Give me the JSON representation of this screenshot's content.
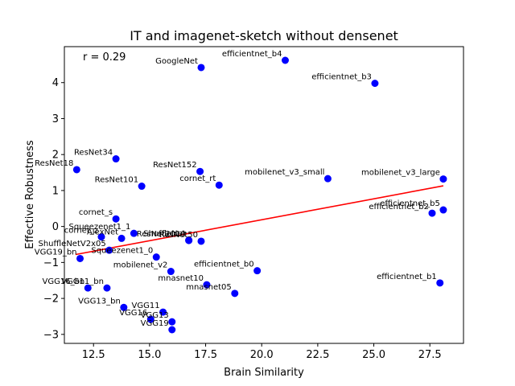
{
  "chart_data": {
    "type": "scatter",
    "title": "IT and imagenet-sketch without densenet",
    "xlabel": "Brain Similarity",
    "ylabel": "Effective Robustness",
    "annotation": "r = 0.29",
    "xlim": [
      11.2,
      29.0
    ],
    "ylim": [
      -3.25,
      5.0
    ],
    "xticks": [
      12.5,
      15.0,
      17.5,
      20.0,
      22.5,
      25.0,
      27.5
    ],
    "xtick_labels": [
      "12.5",
      "15.0",
      "17.5",
      "20.0",
      "22.5",
      "25.0",
      "27.5"
    ],
    "yticks": [
      -3,
      -2,
      -1,
      0,
      1,
      2,
      3,
      4
    ],
    "ytick_labels": [
      "−3",
      "−2",
      "−1",
      "0",
      "1",
      "2",
      "3",
      "4"
    ],
    "point_color": "#0000ff",
    "fit_color": "#ff0000",
    "fit_line": {
      "x": [
        11.7,
        28.1
      ],
      "y": [
        -0.78,
        1.13
      ]
    },
    "points": [
      {
        "label": "GoogleNet",
        "x": 17.3,
        "y": 4.42
      },
      {
        "label": "efficientnet_b4",
        "x": 21.05,
        "y": 4.62
      },
      {
        "label": "efficientnet_b3",
        "x": 25.05,
        "y": 3.98
      },
      {
        "label": "ResNet34",
        "x": 13.5,
        "y": 1.88
      },
      {
        "label": "ResNet18",
        "x": 11.75,
        "y": 1.58
      },
      {
        "label": "ResNet152",
        "x": 17.25,
        "y": 1.53
      },
      {
        "label": "ResNet101",
        "x": 14.65,
        "y": 1.12
      },
      {
        "label": "cornet_rt",
        "x": 18.1,
        "y": 1.15
      },
      {
        "label": "mobilenet_v3_small",
        "x": 22.95,
        "y": 1.33
      },
      {
        "label": "mobilenet_v3_large",
        "x": 28.1,
        "y": 1.32
      },
      {
        "label": "efficientnet_b5",
        "x": 28.1,
        "y": 0.46
      },
      {
        "label": "efficientnet_b2",
        "x": 27.6,
        "y": 0.37
      },
      {
        "label": "cornet_s",
        "x": 13.5,
        "y": 0.21
      },
      {
        "label": "Squeezenet1_1",
        "x": 14.3,
        "y": -0.19
      },
      {
        "label": "cornet_z",
        "x": 12.85,
        "y": -0.29
      },
      {
        "label": "AlexNet",
        "x": 13.75,
        "y": -0.33
      },
      {
        "label": "ShuffleNet",
        "x": 16.75,
        "y": -0.38
      },
      {
        "label": "ResNet50",
        "x": 17.3,
        "y": -0.41
      },
      {
        "label": "ResNet2010",
        "x": 16.75,
        "y": -0.39
      },
      {
        "label": "ShuffleNetV2x05",
        "x": 13.2,
        "y": -0.66
      },
      {
        "label": "Squeezenet1_0",
        "x": 15.3,
        "y": -0.85
      },
      {
        "label": "VGG19_bn",
        "x": 11.9,
        "y": -0.89
      },
      {
        "label": "mobilenet_v2",
        "x": 15.95,
        "y": -1.25
      },
      {
        "label": "efficientnet_b0",
        "x": 19.8,
        "y": -1.23
      },
      {
        "label": "mnasnet10",
        "x": 17.55,
        "y": -1.62
      },
      {
        "label": "mnasnet05",
        "x": 18.8,
        "y": -1.86
      },
      {
        "label": "efficientnet_b1",
        "x": 27.95,
        "y": -1.57
      },
      {
        "label": "VGG16_bn",
        "x": 12.25,
        "y": -1.71
      },
      {
        "label": "VGG11_bn",
        "x": 13.1,
        "y": -1.71
      },
      {
        "label": "VGG13_bn",
        "x": 13.85,
        "y": -2.25
      },
      {
        "label": "VGG11",
        "x": 15.6,
        "y": -2.38
      },
      {
        "label": "VGG16",
        "x": 15.05,
        "y": -2.58
      },
      {
        "label": "VGG13",
        "x": 16.0,
        "y": -2.65
      },
      {
        "label": "VGG19",
        "x": 16.0,
        "y": -2.87
      }
    ]
  }
}
